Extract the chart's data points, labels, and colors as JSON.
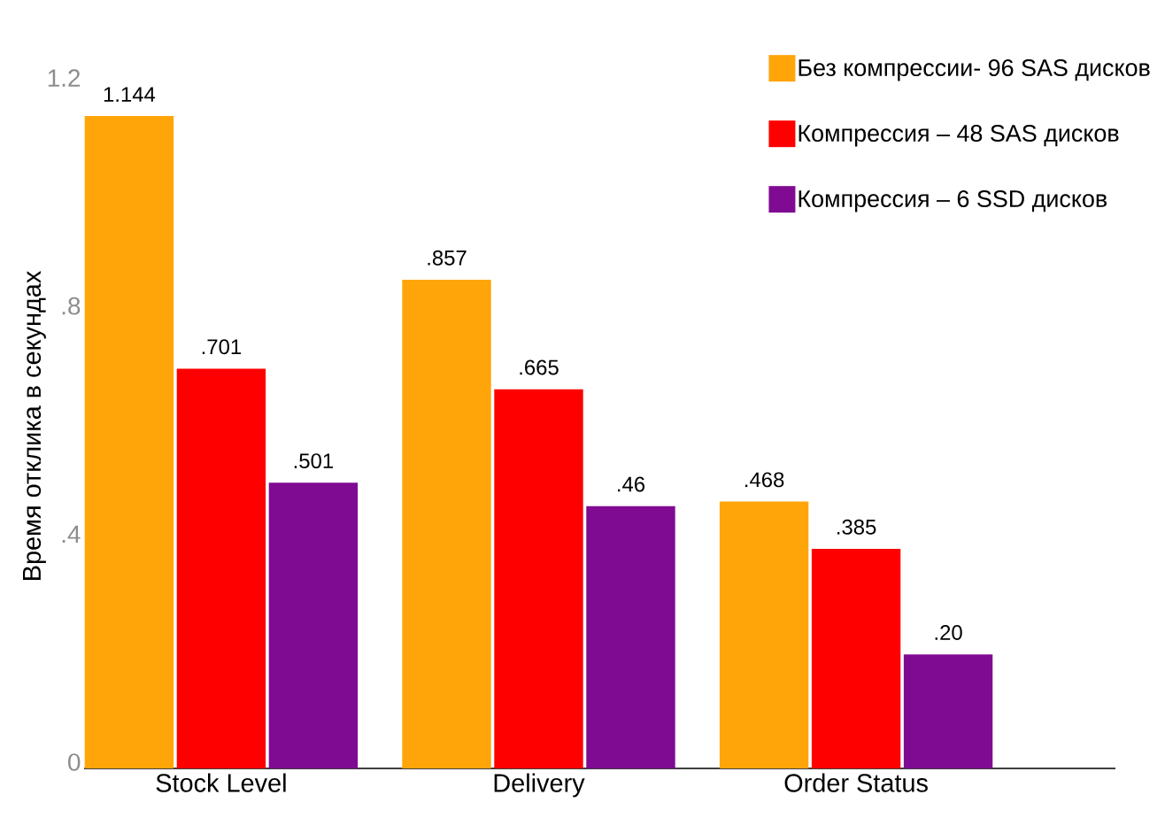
{
  "chart_data": {
    "type": "bar",
    "ylabel": "Время отклика в секундах",
    "categories": [
      "Stock Level",
      "Delivery",
      "Order Status"
    ],
    "series": [
      {
        "name": "Без компрессии- 96 SAS дисков",
        "color": "#ffa50a",
        "values": [
          1.144,
          0.857,
          0.468
        ],
        "value_labels": [
          "1.144",
          ".857",
          ".468"
        ]
      },
      {
        "name": "Компрессия – 48 SAS дисков",
        "color": "#ff0000",
        "values": [
          0.701,
          0.665,
          0.385
        ],
        "value_labels": [
          ".701",
          ".665",
          ".385"
        ]
      },
      {
        "name": "Компрессия  – 6 SSD дисков",
        "color": "#800b93",
        "values": [
          0.501,
          0.46,
          0.2
        ],
        "value_labels": [
          ".501",
          ".46",
          ".20"
        ]
      }
    ],
    "ylim": [
      0,
      1.2
    ],
    "yticks": [
      0,
      {
        "value": 0.4,
        "label": ".4"
      },
      {
        "value": 0.8,
        "label": ".8"
      },
      1.2
    ],
    "grid": false,
    "legend": "top right"
  }
}
